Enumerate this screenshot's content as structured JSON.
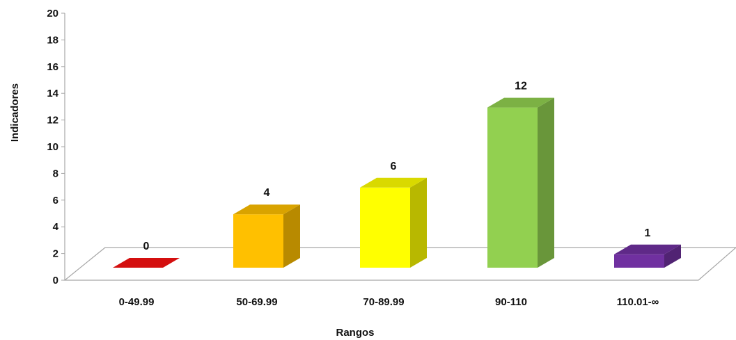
{
  "chart_data": {
    "type": "bar",
    "categories": [
      "0-49.99",
      "50-69.99",
      "70-89.99",
      "90-110",
      "110.01-∞"
    ],
    "values": [
      0,
      4,
      6,
      12,
      1
    ],
    "data_labels": [
      "0",
      "4",
      "6",
      "12",
      "1"
    ],
    "colors": [
      "#d40f0f",
      "#ffc000",
      "#ffff00",
      "#92d050",
      "#7030a0"
    ],
    "xlabel": "Rangos",
    "ylabel": "Indicadores",
    "ylim": [
      0,
      20
    ],
    "yticks": [
      0,
      2,
      4,
      6,
      8,
      10,
      12,
      14,
      16,
      18,
      20
    ],
    "grid": false,
    "style": "3d"
  }
}
